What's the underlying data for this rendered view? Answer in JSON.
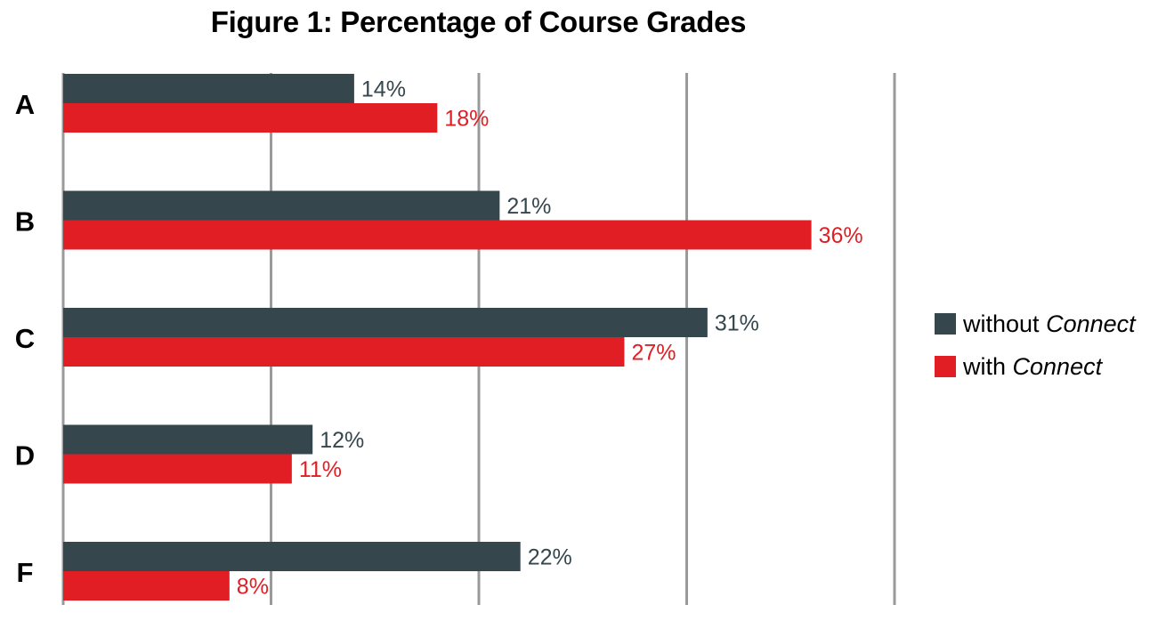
{
  "chart_data": {
    "type": "bar",
    "orientation": "horizontal",
    "title": "Figure 1: Percentage of Course Grades",
    "categories": [
      "A",
      "B",
      "C",
      "D",
      "F"
    ],
    "series": [
      {
        "name_prefix": "without",
        "name_italic": "Connect",
        "color": "#35464d",
        "label_color": "#35464d",
        "values": [
          14,
          21,
          31,
          12,
          22
        ],
        "labels": [
          "14%",
          "21%",
          "31%",
          "12%",
          "22%"
        ]
      },
      {
        "name_prefix": "with",
        "name_italic": "Connect",
        "color": "#e01e24",
        "label_color": "#e01e24",
        "values": [
          18,
          36,
          27,
          11,
          8
        ],
        "labels": [
          "18%",
          "36%",
          "27%",
          "11%",
          "8%"
        ]
      }
    ],
    "xlim": [
      0,
      40
    ],
    "grid": true,
    "legend_position": "right"
  }
}
